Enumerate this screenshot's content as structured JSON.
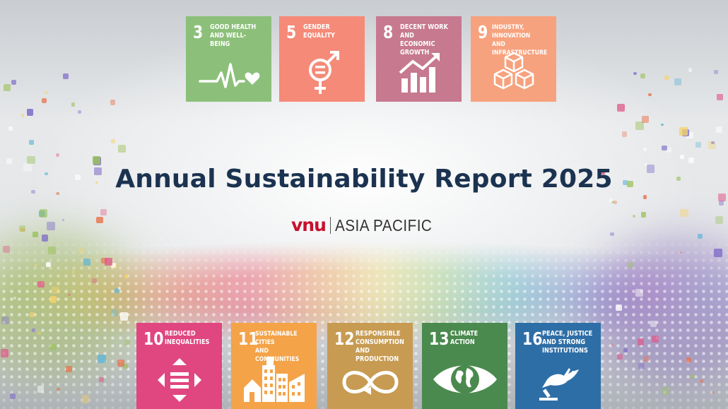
{
  "title": "Annual Sustainability Report 2025",
  "brand": {
    "logo_text": "vnu",
    "region_text": "ASIA PACIFIC",
    "logo_color": "#c8102e"
  },
  "top_goals": [
    {
      "number": "3",
      "label": "GOOD HEALTH\nAND WELL-BEING",
      "color": "#8cc07a",
      "icon": "heartbeat-icon"
    },
    {
      "number": "5",
      "label": "GENDER\nEQUALITY",
      "color": "#f58a78",
      "icon": "gender-equality-icon"
    },
    {
      "number": "8",
      "label": "DECENT WORK AND\nECONOMIC GROWTH",
      "color": "#c6798f",
      "icon": "growth-chart-icon"
    },
    {
      "number": "9",
      "label": "INDUSTRY, INNOVATION\nAND INFRASTRUCTURE",
      "color": "#f7a27e",
      "icon": "cubes-icon"
    }
  ],
  "bottom_goals": [
    {
      "number": "10",
      "label": "REDUCED\nINEQUALITIES",
      "color": "#e0467f",
      "icon": "equality-arrows-icon"
    },
    {
      "number": "11",
      "label": "SUSTAINABLE CITIES\nAND COMMUNITIES",
      "color": "#f4a348",
      "icon": "city-icon"
    },
    {
      "number": "12",
      "label": "RESPONSIBLE\nCONSUMPTION\nAND PRODUCTION",
      "color": "#c79b52",
      "icon": "infinity-icon"
    },
    {
      "number": "13",
      "label": "CLIMATE\nACTION",
      "color": "#4a8a4e",
      "icon": "earth-eye-icon"
    },
    {
      "number": "16",
      "label": "PEACE, JUSTICE\nAND STRONG\nINSTITUTIONS",
      "color": "#2e6ea6",
      "icon": "dove-gavel-icon"
    }
  ]
}
